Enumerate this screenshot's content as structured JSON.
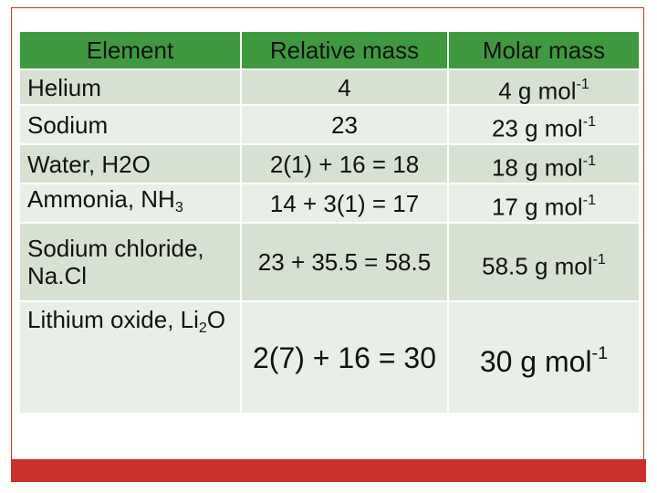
{
  "table": {
    "header": [
      [
        {
          "text": "Element"
        }
      ],
      [
        {
          "text": "Relative mass"
        }
      ],
      [
        {
          "text": "Molar mass"
        }
      ]
    ],
    "rows": [
      [
        [
          {
            "text": "Helium"
          }
        ],
        [
          {
            "text": "4"
          }
        ],
        [
          {
            "text": "4 g mol"
          },
          {
            "sup": "-1"
          }
        ]
      ],
      [
        [
          {
            "text": "Sodium"
          }
        ],
        [
          {
            "text": "23"
          }
        ],
        [
          {
            "text": "23 g mol"
          },
          {
            "sup": "-1"
          }
        ]
      ],
      [
        [
          {
            "text": "Water, H2O"
          }
        ],
        [
          {
            "text": "2(1) + 16 = 18"
          }
        ],
        [
          {
            "text": "18 g mol"
          },
          {
            "sup": "-1"
          }
        ]
      ],
      [
        [
          {
            "text": "Ammonia, NH"
          },
          {
            "sub": "3"
          }
        ],
        [
          {
            "text": "14 + 3(1) = 17"
          }
        ],
        [
          {
            "text": "17 g mol"
          },
          {
            "sup": "-1"
          }
        ]
      ],
      [
        [
          {
            "text": "Sodium chloride, Na.Cl"
          }
        ],
        [
          {
            "text": "23 + 35.5 = 58.5"
          }
        ],
        [
          {
            "text": "58.5 g mol"
          },
          {
            "sup": "-1"
          }
        ]
      ],
      [
        [
          {
            "text": "Lithium oxide, Li"
          },
          {
            "sub": "2"
          },
          {
            "text": "O"
          }
        ],
        [
          {
            "text": "2(7) + 16 = 30"
          }
        ],
        [
          {
            "text": "30 g mol"
          },
          {
            "sup": "-1"
          }
        ]
      ]
    ]
  }
}
